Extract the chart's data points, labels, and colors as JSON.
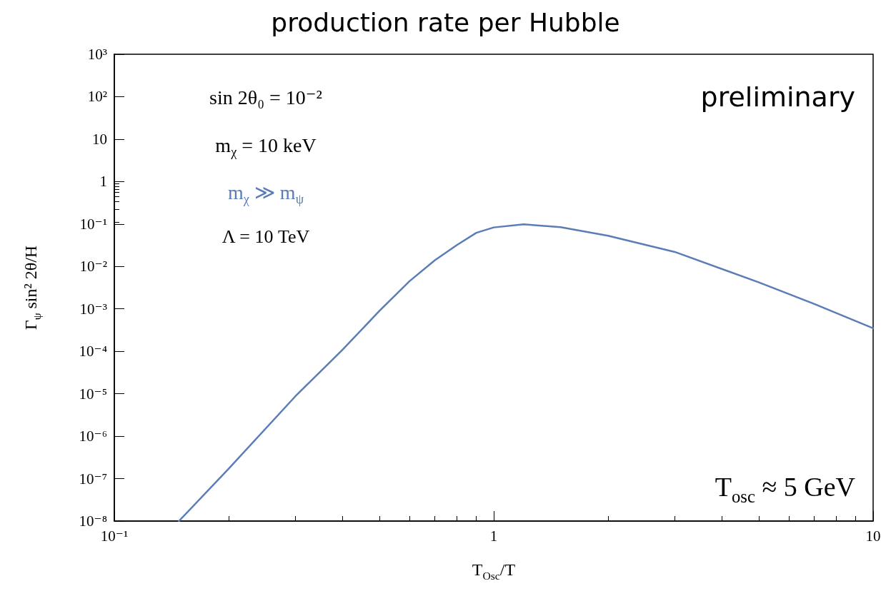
{
  "chart_data": {
    "type": "line",
    "title": "production rate per Hubble",
    "xlabel": "T$_{Osc}$/T",
    "ylabel": "Γ$_{ψ}$ sin² 2θ/H",
    "log": "xy",
    "grid": false,
    "marker": "none",
    "line_style": "solid",
    "xlim": [
      0.1,
      10
    ],
    "xticks": [
      {
        "value": 0.1,
        "label": "10⁻¹"
      },
      1,
      10
    ],
    "ylim": [
      1e-08,
      1000
    ],
    "yticks": [
      {
        "value": 1e-08,
        "label": "10⁻⁸"
      },
      {
        "value": 1e-07,
        "label": "10⁻⁷"
      },
      {
        "value": 1e-06,
        "label": "10⁻⁶"
      },
      {
        "value": 1e-05,
        "label": "10⁻⁵"
      },
      {
        "value": 0.0001,
        "label": "10⁻⁴"
      },
      {
        "value": 0.001,
        "label": "10⁻³"
      },
      {
        "value": 0.01,
        "label": "10⁻²"
      },
      {
        "value": 0.1,
        "label": "10⁻¹"
      },
      1,
      10,
      {
        "value": 100,
        "label": "10²"
      },
      {
        "value": 1000,
        "label": "10³"
      }
    ],
    "x": [
      0.148,
      0.2,
      0.3,
      0.4,
      0.5,
      0.6,
      0.7,
      0.8,
      0.9,
      1.0,
      1.2,
      1.5,
      2,
      3,
      5,
      7,
      10
    ],
    "series": [
      {
        "color": "#5a7db8",
        "values": [
          1e-08,
          1.7e-07,
          8.7e-06,
          0.00011,
          0.0009,
          0.0045,
          0.014,
          0.032,
          0.062,
          0.083,
          0.098,
          0.084,
          0.053,
          0.022,
          0.0042,
          0.0013,
          0.00035
        ]
      }
    ],
    "annotations": [
      "sin 2θ₀ = 10⁻²",
      "m$_{χ}$ = 10 keV",
      "m$_{χ}$ ≫ m$_{ψ}$",
      "Λ = 10 TeV",
      "preliminary",
      "T$_{osc}$ ≈ 5 GeV"
    ]
  }
}
